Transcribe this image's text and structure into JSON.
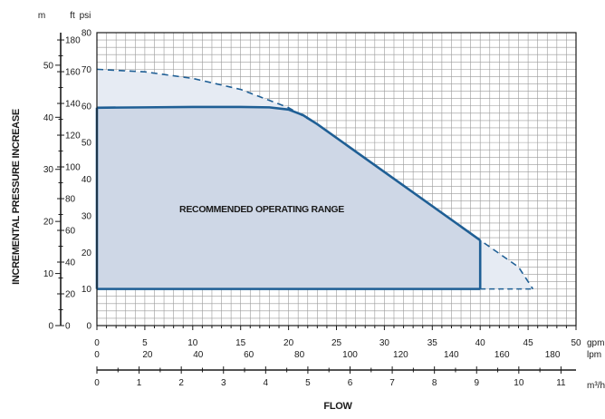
{
  "chart_data": {
    "type": "area",
    "title": "",
    "xlabel": "FLOW",
    "ylabel": "INCREMENTAL PRESSURE INCREASE",
    "x_axes": [
      {
        "unit": "gpm",
        "range": [
          0,
          50
        ],
        "ticks": [
          "0",
          "5",
          "10",
          "15",
          "20",
          "25",
          "30",
          "35",
          "40",
          "45",
          "50"
        ]
      },
      {
        "unit": "lpm",
        "range": [
          0,
          189.27
        ],
        "ticks": [
          "0",
          "20",
          "40",
          "60",
          "80",
          "100",
          "120",
          "140",
          "160",
          "180"
        ]
      },
      {
        "unit": "m³/h",
        "range": [
          0,
          11.356
        ],
        "ticks": [
          "0",
          "1",
          "2",
          "3",
          "4",
          "5",
          "6",
          "7",
          "8",
          "9",
          "10",
          "11"
        ]
      }
    ],
    "y_axes": [
      {
        "unit": "psi",
        "range": [
          0,
          80
        ],
        "ticks": [
          "0",
          "10",
          "20",
          "30",
          "40",
          "50",
          "60",
          "70",
          "80"
        ]
      },
      {
        "unit": "ft",
        "range": [
          0,
          184.6
        ],
        "ticks": [
          "0",
          "20",
          "40",
          "60",
          "80",
          "100",
          "120",
          "140",
          "160",
          "180"
        ]
      },
      {
        "unit": "m",
        "range": [
          0,
          56.25
        ],
        "ticks": [
          "0",
          "10",
          "20",
          "30",
          "40",
          "50"
        ]
      }
    ],
    "grid": true,
    "series": [
      {
        "name": "",
        "style": "solid",
        "color": "#1f5f95",
        "points": [
          [
            0,
            59.5
          ],
          [
            5,
            59.6
          ],
          [
            10,
            59.7
          ],
          [
            15,
            59.7
          ],
          [
            18,
            59.6
          ],
          [
            20,
            59
          ],
          [
            21.5,
            57.5
          ],
          [
            23,
            55
          ],
          [
            40,
            23.3
          ]
        ]
      },
      {
        "name": "",
        "style": "dashed",
        "color": "#1f5f95",
        "points": [
          [
            0,
            70
          ],
          [
            5,
            69.3
          ],
          [
            10,
            67.5
          ],
          [
            15,
            64.5
          ],
          [
            20,
            59.5
          ],
          [
            23,
            55
          ],
          [
            30,
            42
          ],
          [
            40,
            23.3
          ],
          [
            44,
            16
          ],
          [
            45.5,
            10
          ]
        ]
      }
    ],
    "operating_range": {
      "label": "RECOMMENDED OPERATING RANGE",
      "fill": "#c9d3e3",
      "boundary_flow_gpm": [
        0,
        40
      ],
      "boundary_pressure_psi": [
        10,
        59.5
      ]
    },
    "unit_labels": {
      "psi": "psi",
      "ft": "ft",
      "m": "m",
      "gpm": "gpm",
      "lpm": "lpm",
      "m3h": "m³/h"
    }
  }
}
